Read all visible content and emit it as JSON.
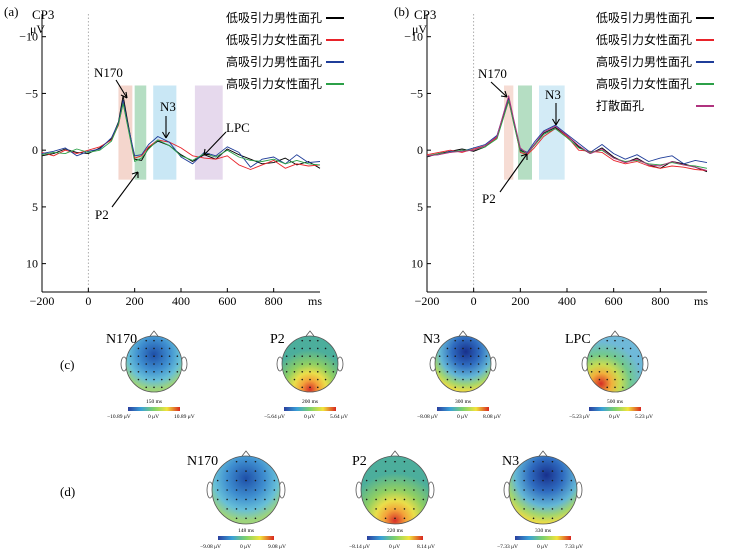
{
  "figure": {
    "panel_a": {
      "label": "(a)",
      "electrode": "CP3",
      "unit": "μV",
      "x_unit": "ms",
      "components": [
        "N170",
        "P2",
        "N3",
        "LPC"
      ],
      "legend": [
        {
          "label": "低吸引力男性面孔",
          "color": "#000000"
        },
        {
          "label": "低吸引力女性面孔",
          "color": "#e8232a"
        },
        {
          "label": "高吸引力男性面孔",
          "color": "#1f3d99"
        },
        {
          "label": "高吸引力女性面孔",
          "color": "#2ca048"
        }
      ]
    },
    "panel_b": {
      "label": "(b)",
      "electrode": "CP3",
      "unit": "μV",
      "x_unit": "ms",
      "components": [
        "N170",
        "P2",
        "N3"
      ],
      "legend": [
        {
          "label": "低吸引力男性面孔",
          "color": "#000000"
        },
        {
          "label": "低吸引力女性面孔",
          "color": "#e8232a"
        },
        {
          "label": "高吸引力男性面孔",
          "color": "#1f3d99"
        },
        {
          "label": "高吸引力女性面孔",
          "color": "#2ca048"
        },
        {
          "label": "打散面孔",
          "color": "#b0337f"
        }
      ]
    },
    "panel_c": {
      "label": "(c)",
      "maps": [
        {
          "title": "N170",
          "time": "150 ms",
          "scale_min": "−10.89 μV",
          "scale_mid": "0 μV",
          "scale_max": "10.89 μV"
        },
        {
          "title": "P2",
          "time": "200 ms",
          "scale_min": "−5.64 μV",
          "scale_mid": "0 μV",
          "scale_max": "5.64 μV"
        },
        {
          "title": "N3",
          "time": "300 ms",
          "scale_min": "−8.08 μV",
          "scale_mid": "0 μV",
          "scale_max": "8.08 μV"
        },
        {
          "title": "LPC",
          "time": "500 ms",
          "scale_min": "−5.23 μV",
          "scale_mid": "0 μV",
          "scale_max": "5.23 μV"
        }
      ]
    },
    "panel_d": {
      "label": "(d)",
      "maps": [
        {
          "title": "N170",
          "time": "148 ms",
          "scale_min": "−9.08 μV",
          "scale_mid": "0 μV",
          "scale_max": "9.08 μV"
        },
        {
          "title": "P2",
          "time": "220 ms",
          "scale_min": "−8.14 μV",
          "scale_mid": "0 μV",
          "scale_max": "8.14 μV"
        },
        {
          "title": "N3",
          "time": "330 ms",
          "scale_min": "−7.33 μV",
          "scale_mid": "0 μV",
          "scale_max": "7.33 μV"
        }
      ]
    }
  },
  "chart_data": [
    {
      "type": "line",
      "title": "CP3",
      "xlabel": "ms",
      "ylabel": "μV",
      "xlim": [
        -200,
        1000
      ],
      "ylim": [
        -12,
        12.5
      ],
      "y_inverted": true,
      "x_ticks": [
        -200,
        0,
        200,
        400,
        600,
        800
      ],
      "y_ticks": [
        -10,
        -5,
        0,
        5,
        10
      ],
      "y_tick_labels": [
        "−10",
        "−5",
        "0",
        "5",
        "10"
      ],
      "shaded_windows": [
        {
          "component": "N170",
          "range": [
            130,
            190
          ],
          "color": "#f2cfc4"
        },
        {
          "component": "P2",
          "range": [
            200,
            250
          ],
          "color": "#a8d8b8"
        },
        {
          "component": "N3",
          "range": [
            280,
            380
          ],
          "color": "#bfe3f3"
        },
        {
          "component": "LPC",
          "range": [
            460,
            580
          ],
          "color": "#e2d2ea"
        }
      ],
      "annotations": [
        {
          "text": "N170",
          "target": [
            150,
            -4.6
          ]
        },
        {
          "text": "P2",
          "target": [
            230,
            1.5
          ]
        },
        {
          "text": "N3",
          "target": [
            310,
            -1.2
          ]
        },
        {
          "text": "LPC",
          "target": [
            530,
            -0.5
          ]
        }
      ],
      "series": [
        {
          "name": "低吸引力男性面孔",
          "color": "#000000",
          "x": [
            -200,
            -150,
            -100,
            -50,
            0,
            50,
            100,
            130,
            150,
            170,
            200,
            230,
            260,
            300,
            350,
            400,
            450,
            500,
            550,
            600,
            650,
            700,
            750,
            800,
            850,
            900,
            950,
            1000
          ],
          "y": [
            0.5,
            0.3,
            -0.1,
            0.2,
            0.3,
            -0.2,
            -1.0,
            -2.5,
            -4.8,
            -2.5,
            0.8,
            0.9,
            -0.2,
            -0.8,
            -0.4,
            0.4,
            1.0,
            0.4,
            0.8,
            -0.1,
            0.4,
            0.8,
            1.2,
            1.1,
            0.7,
            1.3,
            1.0,
            1.6
          ]
        },
        {
          "name": "低吸引力女性面孔",
          "color": "#e8232a",
          "x": [
            -200,
            -150,
            -100,
            -50,
            0,
            50,
            100,
            130,
            150,
            170,
            200,
            230,
            260,
            300,
            350,
            400,
            450,
            500,
            550,
            600,
            650,
            700,
            750,
            800,
            850,
            900,
            950,
            1000
          ],
          "y": [
            0.2,
            0.5,
            0.0,
            0.3,
            0.0,
            -0.3,
            -0.9,
            -2.2,
            -4.2,
            -2.2,
            0.7,
            0.5,
            -0.3,
            -0.9,
            -0.7,
            -0.2,
            0.5,
            0.7,
            0.8,
            0.5,
            1.3,
            1.7,
            1.3,
            0.9,
            1.6,
            1.2,
            1.4,
            1.3
          ]
        },
        {
          "name": "高吸引力男性面孔",
          "color": "#1f3d99",
          "x": [
            -200,
            -150,
            -100,
            -50,
            0,
            50,
            100,
            130,
            150,
            170,
            200,
            230,
            260,
            300,
            350,
            400,
            450,
            500,
            550,
            600,
            650,
            700,
            750,
            800,
            850,
            900,
            950,
            1000
          ],
          "y": [
            0.3,
            0.1,
            -0.2,
            0.5,
            0.1,
            -0.1,
            -1.1,
            -2.4,
            -4.4,
            -2.3,
            0.5,
            0.4,
            -0.5,
            -1.2,
            -0.7,
            0.6,
            1.2,
            0.2,
            0.5,
            -0.3,
            0.2,
            1.5,
            0.8,
            0.6,
            1.2,
            0.4,
            1.1,
            1.0
          ]
        },
        {
          "name": "高吸引力女性面孔",
          "color": "#2ca048",
          "x": [
            -200,
            -150,
            -100,
            -50,
            0,
            50,
            100,
            130,
            150,
            170,
            200,
            230,
            260,
            300,
            350,
            400,
            450,
            500,
            550,
            600,
            650,
            700,
            750,
            800,
            850,
            900,
            950,
            1000
          ],
          "y": [
            0.4,
            0.2,
            0.3,
            -0.1,
            0.2,
            0.0,
            -0.8,
            -2.3,
            -4.1,
            -2.1,
            1.0,
            0.7,
            -0.1,
            -0.9,
            -0.4,
            0.5,
            0.9,
            0.3,
            0.6,
            0.0,
            0.6,
            0.9,
            1.0,
            0.8,
            1.2,
            0.9,
            1.2,
            1.3
          ]
        }
      ]
    },
    {
      "type": "line",
      "title": "CP3",
      "xlabel": "ms",
      "ylabel": "μV",
      "xlim": [
        -200,
        1000
      ],
      "ylim": [
        -12,
        12.5
      ],
      "y_inverted": true,
      "x_ticks": [
        -200,
        0,
        200,
        400,
        600,
        800
      ],
      "y_ticks": [
        -10,
        -5,
        0,
        5,
        10
      ],
      "y_tick_labels": [
        "−10",
        "−5",
        "0",
        "5",
        "10"
      ],
      "shaded_windows": [
        {
          "component": "N170",
          "range": [
            130,
            170
          ],
          "color": "#f5d6cc"
        },
        {
          "component": "P2",
          "range": [
            190,
            250
          ],
          "color": "#a8d8b8"
        },
        {
          "component": "N3",
          "range": [
            280,
            390
          ],
          "color": "#cbe8f5"
        }
      ],
      "annotations": [
        {
          "text": "N170",
          "target": [
            150,
            -4.6
          ]
        },
        {
          "text": "P2",
          "target": [
            220,
            0.5
          ]
        },
        {
          "text": "N3",
          "target": [
            330,
            -2.2
          ]
        }
      ],
      "series": [
        {
          "name": "低吸引力男性面孔",
          "color": "#000000",
          "x": [
            -200,
            -150,
            -100,
            -50,
            0,
            50,
            100,
            130,
            150,
            170,
            200,
            230,
            260,
            300,
            350,
            400,
            450,
            500,
            550,
            600,
            650,
            700,
            750,
            800,
            850,
            900,
            950,
            1000
          ],
          "y": [
            0.6,
            0.3,
            0.1,
            -0.1,
            0.1,
            -0.3,
            -1.2,
            -3.2,
            -4.6,
            -2.8,
            0.0,
            0.3,
            -0.5,
            -1.5,
            -2.0,
            -1.3,
            -0.3,
            0.3,
            -0.2,
            0.6,
            1.1,
            0.7,
            1.3,
            1.6,
            1.0,
            1.2,
            1.5,
            1.9
          ]
        },
        {
          "name": "低吸引力女性面孔",
          "color": "#e8232a",
          "x": [
            -200,
            -150,
            -100,
            -50,
            0,
            50,
            100,
            130,
            150,
            170,
            200,
            230,
            260,
            300,
            350,
            400,
            450,
            500,
            550,
            600,
            650,
            700,
            750,
            800,
            850,
            900,
            950,
            1000
          ],
          "y": [
            0.4,
            0.2,
            0.0,
            0.2,
            -0.1,
            -0.4,
            -1.1,
            -3.1,
            -4.3,
            -2.6,
            0.2,
            0.4,
            -0.2,
            -1.2,
            -1.9,
            -1.2,
            0.0,
            0.1,
            0.2,
            0.9,
            1.2,
            1.0,
            1.4,
            1.6,
            1.4,
            1.5,
            1.7,
            1.8
          ]
        },
        {
          "name": "高吸引力男性面孔",
          "color": "#1f3d99",
          "x": [
            -200,
            -150,
            -100,
            -50,
            0,
            50,
            100,
            130,
            150,
            170,
            200,
            230,
            260,
            300,
            350,
            400,
            450,
            500,
            550,
            600,
            650,
            700,
            750,
            800,
            850,
            900,
            950,
            1000
          ],
          "y": [
            0.5,
            0.4,
            0.1,
            0.1,
            -0.2,
            -0.5,
            -1.3,
            -3.3,
            -4.5,
            -2.7,
            -0.1,
            0.2,
            -0.7,
            -1.7,
            -2.2,
            -1.4,
            -0.6,
            0.2,
            -0.5,
            0.3,
            0.8,
            0.4,
            1.0,
            0.7,
            0.5,
            1.2,
            0.9,
            1.1
          ]
        },
        {
          "name": "高吸引力女性面孔",
          "color": "#2ca048",
          "x": [
            -200,
            -150,
            -100,
            -50,
            0,
            50,
            100,
            130,
            150,
            170,
            200,
            230,
            260,
            300,
            350,
            400,
            450,
            500,
            550,
            600,
            650,
            700,
            750,
            800,
            850,
            900,
            950,
            1000
          ],
          "y": [
            0.5,
            0.3,
            0.2,
            0.0,
            0.0,
            -0.3,
            -1.0,
            -3.0,
            -4.4,
            -2.5,
            0.1,
            0.3,
            -0.4,
            -1.4,
            -1.9,
            -1.1,
            -0.2,
            0.2,
            0.0,
            0.7,
            1.0,
            0.9,
            1.2,
            1.3,
            1.1,
            1.3,
            1.4,
            1.6
          ]
        },
        {
          "name": "打散面孔",
          "color": "#b0337f",
          "x": [
            -200,
            -150,
            -100,
            -50,
            0,
            50,
            100,
            130,
            150,
            170,
            200,
            230,
            260,
            300,
            350,
            400,
            450,
            500,
            550,
            600,
            650,
            700,
            750,
            800,
            850,
            900,
            950,
            1000
          ],
          "y": [
            0.5,
            0.4,
            0.2,
            0.1,
            0.0,
            -0.4,
            -1.2,
            -3.4,
            -4.8,
            -2.9,
            -0.2,
            0.3,
            -0.5,
            -1.6,
            -2.1,
            -1.3,
            -0.4,
            0.3,
            -0.1,
            0.7,
            1.1,
            0.8,
            1.3,
            1.4,
            1.0,
            1.3,
            1.5,
            1.8
          ]
        }
      ]
    }
  ]
}
